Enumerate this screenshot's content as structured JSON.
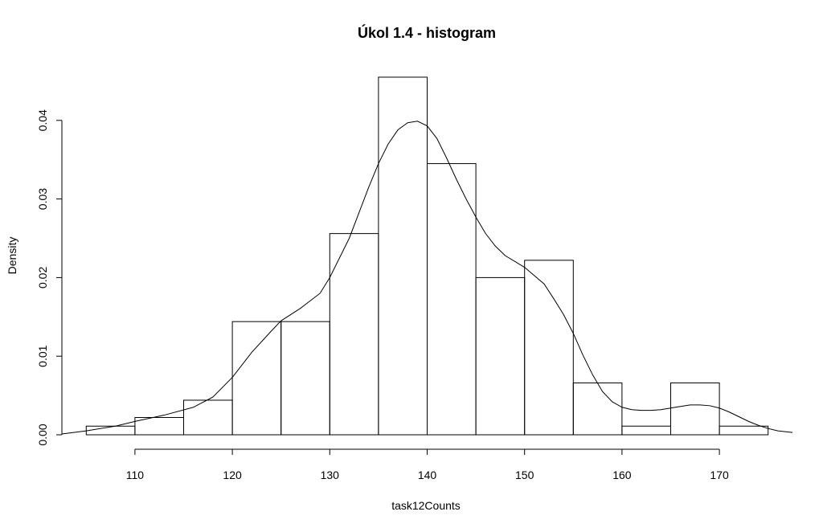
{
  "chart_data": {
    "type": "bar",
    "title": "Úkol 1.4 - histogram",
    "xlabel": "task12Counts",
    "ylabel": "Density",
    "x_ticks": [
      110,
      120,
      130,
      140,
      150,
      160,
      170
    ],
    "y_ticks": [
      0.0,
      0.01,
      0.02,
      0.03,
      0.04
    ],
    "y_tick_labels": [
      "0.00",
      "0.01",
      "0.02",
      "0.03",
      "0.04"
    ],
    "xlim": [
      102.5,
      177.5
    ],
    "ylim": [
      0,
      0.0455
    ],
    "bins": [
      {
        "start": 105,
        "end": 110,
        "density": 0.0011
      },
      {
        "start": 110,
        "end": 115,
        "density": 0.0022
      },
      {
        "start": 115,
        "end": 120,
        "density": 0.0044
      },
      {
        "start": 120,
        "end": 125,
        "density": 0.0144
      },
      {
        "start": 125,
        "end": 130,
        "density": 0.0144
      },
      {
        "start": 130,
        "end": 135,
        "density": 0.0256
      },
      {
        "start": 135,
        "end": 140,
        "density": 0.0455
      },
      {
        "start": 140,
        "end": 145,
        "density": 0.0345
      },
      {
        "start": 145,
        "end": 150,
        "density": 0.02
      },
      {
        "start": 150,
        "end": 155,
        "density": 0.0222
      },
      {
        "start": 155,
        "end": 160,
        "density": 0.0066
      },
      {
        "start": 160,
        "end": 165,
        "density": 0.0011
      },
      {
        "start": 165,
        "end": 170,
        "density": 0.0066
      },
      {
        "start": 170,
        "end": 175,
        "density": 0.0011
      }
    ],
    "density_curve": {
      "x": [
        102.5,
        105,
        108,
        110,
        113,
        116,
        118,
        120,
        122,
        124,
        125,
        127,
        129,
        130,
        132,
        134,
        135,
        136,
        137,
        138,
        139,
        140,
        141,
        142,
        143,
        144,
        145,
        146,
        147,
        148,
        150,
        152,
        153,
        154,
        155,
        156,
        157,
        158,
        159,
        160,
        161,
        162,
        163,
        164,
        165,
        166,
        167,
        168,
        169,
        170,
        171,
        172,
        173,
        174,
        175,
        176,
        177.5
      ],
      "y": [
        0.0001,
        0.0005,
        0.0011,
        0.0017,
        0.0025,
        0.0035,
        0.0048,
        0.0073,
        0.0105,
        0.0132,
        0.0145,
        0.0161,
        0.018,
        0.02,
        0.025,
        0.0315,
        0.0345,
        0.037,
        0.0388,
        0.0397,
        0.0399,
        0.0393,
        0.0377,
        0.0352,
        0.0325,
        0.03,
        0.0277,
        0.0256,
        0.024,
        0.0228,
        0.0213,
        0.0192,
        0.0173,
        0.0153,
        0.0129,
        0.0101,
        0.0076,
        0.0055,
        0.0042,
        0.0035,
        0.0032,
        0.0031,
        0.0031,
        0.0032,
        0.0034,
        0.0036,
        0.0038,
        0.0038,
        0.0037,
        0.0034,
        0.0029,
        0.0023,
        0.0017,
        0.0012,
        0.0008,
        0.0005,
        0.0003
      ]
    },
    "grid": false,
    "legend": "none"
  }
}
